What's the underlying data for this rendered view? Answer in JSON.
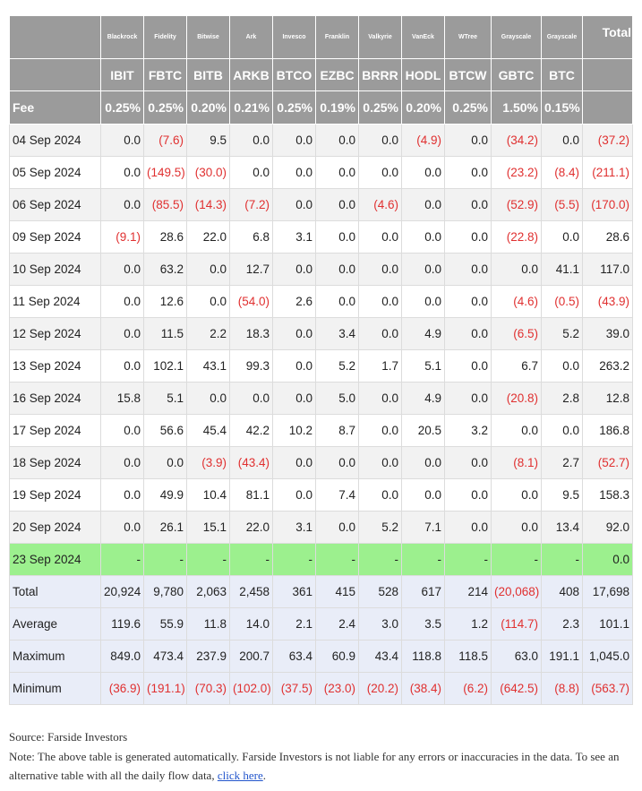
{
  "header": {
    "issuers": [
      "Blackrock",
      "Fidelity",
      "Bitwise",
      "Ark",
      "Invesco",
      "Franklin",
      "Valkyrie",
      "VanEck",
      "WTree",
      "Grayscale",
      "Grayscale"
    ],
    "total": "Total",
    "tickers": [
      "IBIT",
      "FBTC",
      "BITB",
      "ARKB",
      "BTCO",
      "EZBC",
      "BRRR",
      "HODL",
      "BTCW",
      "GBTC",
      "BTC"
    ]
  },
  "fee": {
    "label": "Fee",
    "values": [
      "0.25%",
      "0.25%",
      "0.20%",
      "0.21%",
      "0.25%",
      "0.19%",
      "0.25%",
      "0.20%",
      "0.25%",
      "1.50%",
      "0.15%"
    ]
  },
  "rows": [
    {
      "date": "04 Sep 2024",
      "values": [
        "0.0",
        "(7.6)",
        "9.5",
        "0.0",
        "0.0",
        "0.0",
        "0.0",
        "(4.9)",
        "0.0",
        "(34.2)",
        "0.0",
        "(37.2)"
      ]
    },
    {
      "date": "05 Sep 2024",
      "values": [
        "0.0",
        "(149.5)",
        "(30.0)",
        "0.0",
        "0.0",
        "0.0",
        "0.0",
        "0.0",
        "0.0",
        "(23.2)",
        "(8.4)",
        "(211.1)"
      ]
    },
    {
      "date": "06 Sep 2024",
      "values": [
        "0.0",
        "(85.5)",
        "(14.3)",
        "(7.2)",
        "0.0",
        "0.0",
        "(4.6)",
        "0.0",
        "0.0",
        "(52.9)",
        "(5.5)",
        "(170.0)"
      ]
    },
    {
      "date": "09 Sep 2024",
      "values": [
        "(9.1)",
        "28.6",
        "22.0",
        "6.8",
        "3.1",
        "0.0",
        "0.0",
        "0.0",
        "0.0",
        "(22.8)",
        "0.0",
        "28.6"
      ]
    },
    {
      "date": "10 Sep 2024",
      "values": [
        "0.0",
        "63.2",
        "0.0",
        "12.7",
        "0.0",
        "0.0",
        "0.0",
        "0.0",
        "0.0",
        "0.0",
        "41.1",
        "117.0"
      ]
    },
    {
      "date": "11 Sep 2024",
      "values": [
        "0.0",
        "12.6",
        "0.0",
        "(54.0)",
        "2.6",
        "0.0",
        "0.0",
        "0.0",
        "0.0",
        "(4.6)",
        "(0.5)",
        "(43.9)"
      ]
    },
    {
      "date": "12 Sep 2024",
      "values": [
        "0.0",
        "11.5",
        "2.2",
        "18.3",
        "0.0",
        "3.4",
        "0.0",
        "4.9",
        "0.0",
        "(6.5)",
        "5.2",
        "39.0"
      ]
    },
    {
      "date": "13 Sep 2024",
      "values": [
        "0.0",
        "102.1",
        "43.1",
        "99.3",
        "0.0",
        "5.2",
        "1.7",
        "5.1",
        "0.0",
        "6.7",
        "0.0",
        "263.2"
      ]
    },
    {
      "date": "16 Sep 2024",
      "values": [
        "15.8",
        "5.1",
        "0.0",
        "0.0",
        "0.0",
        "5.0",
        "0.0",
        "4.9",
        "0.0",
        "(20.8)",
        "2.8",
        "12.8"
      ]
    },
    {
      "date": "17 Sep 2024",
      "values": [
        "0.0",
        "56.6",
        "45.4",
        "42.2",
        "10.2",
        "8.7",
        "0.0",
        "20.5",
        "3.2",
        "0.0",
        "0.0",
        "186.8"
      ]
    },
    {
      "date": "18 Sep 2024",
      "values": [
        "0.0",
        "0.0",
        "(3.9)",
        "(43.4)",
        "0.0",
        "0.0",
        "0.0",
        "0.0",
        "0.0",
        "(8.1)",
        "2.7",
        "(52.7)"
      ]
    },
    {
      "date": "19 Sep 2024",
      "values": [
        "0.0",
        "49.9",
        "10.4",
        "81.1",
        "0.0",
        "7.4",
        "0.0",
        "0.0",
        "0.0",
        "0.0",
        "9.5",
        "158.3"
      ]
    },
    {
      "date": "20 Sep 2024",
      "values": [
        "0.0",
        "26.1",
        "15.1",
        "22.0",
        "3.1",
        "0.0",
        "5.2",
        "7.1",
        "0.0",
        "0.0",
        "13.4",
        "92.0"
      ]
    },
    {
      "date": "23 Sep 2024",
      "values": [
        "-",
        "-",
        "-",
        "-",
        "-",
        "-",
        "-",
        "-",
        "-",
        "-",
        "-",
        "0.0"
      ]
    }
  ],
  "summary": [
    {
      "label": "Total",
      "values": [
        "20,924",
        "9,780",
        "2,063",
        "2,458",
        "361",
        "415",
        "528",
        "617",
        "214",
        "(20,068)",
        "408",
        "17,698"
      ]
    },
    {
      "label": "Average",
      "values": [
        "119.6",
        "55.9",
        "11.8",
        "14.0",
        "2.1",
        "2.4",
        "3.0",
        "3.5",
        "1.2",
        "(114.7)",
        "2.3",
        "101.1"
      ]
    },
    {
      "label": "Maximum",
      "values": [
        "849.0",
        "473.4",
        "237.9",
        "200.7",
        "63.4",
        "60.9",
        "43.4",
        "118.8",
        "118.5",
        "63.0",
        "191.1",
        "1,045.0"
      ]
    },
    {
      "label": "Minimum",
      "values": [
        "(36.9)",
        "(191.1)",
        "(70.3)",
        "(102.0)",
        "(37.5)",
        "(23.0)",
        "(20.2)",
        "(38.4)",
        "(6.2)",
        "(642.5)",
        "(8.8)",
        "(563.7)"
      ]
    }
  ],
  "footer": {
    "source": "Source: Farside Investors",
    "note": "Note: The above table is generated automatically. Farside Investors is not liable for any errors or inaccuracies in the data. To see an alternative table with all the daily flow data, ",
    "link": "click here",
    "note_end": "."
  }
}
